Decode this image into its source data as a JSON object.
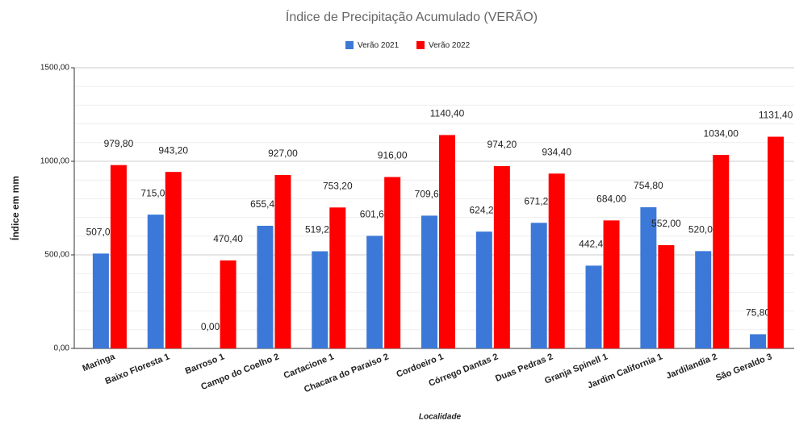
{
  "chart_data": {
    "type": "bar",
    "title": "Índice de Precipitação Acumulado (VERÃO)",
    "y_label": "Índice em mm",
    "x_label": "Localidade",
    "categories": [
      "Maringa",
      "Baixo Floresta 1",
      "Barroso 1",
      "Campo do Coelho 2",
      "Cartacione 1",
      "Chacara do Paraiso 2",
      "Cordoeiro 1",
      "Córrego Dantas 2",
      "Duas Pedras 2",
      "Granja Spinell 1",
      "Jardim California 1",
      "Jardilandia 2",
      "São Geraldo 3"
    ],
    "series": [
      {
        "name": "Verão 2021",
        "color": "#3c78d8",
        "values": [
          507,
          715,
          0,
          655.4,
          519.2,
          601.6,
          709.6,
          624.2,
          671.2,
          442.4,
          754.8,
          520,
          75.8
        ],
        "value_labels": [
          "507,00",
          "715,00",
          "0,00",
          "655,40",
          "519,20",
          "601,60",
          "709,60",
          "624,20",
          "671,20",
          "442,40",
          "754,80",
          "520,00",
          "75,80"
        ]
      },
      {
        "name": "Verão 2022",
        "color": "#ff0000",
        "values": [
          979.8,
          943.2,
          470.4,
          927,
          753.2,
          916,
          1140.4,
          974.2,
          934.4,
          684,
          552,
          1034,
          1131.4
        ],
        "value_labels": [
          "979,80",
          "943,20",
          "470,40",
          "927,00",
          "753,20",
          "916,00",
          "1140,40",
          "974,20",
          "934,40",
          "684,00",
          "552,00",
          "1034,00",
          "1131,40"
        ]
      }
    ],
    "ylim": [
      0,
      1500
    ],
    "yticks": [
      {
        "value": 0,
        "label": "0,00"
      },
      {
        "value": 500,
        "label": "500,00"
      },
      {
        "value": 1000,
        "label": "1000,00"
      },
      {
        "value": 1500,
        "label": "1500,00"
      }
    ],
    "grid": true,
    "legend": "top"
  }
}
